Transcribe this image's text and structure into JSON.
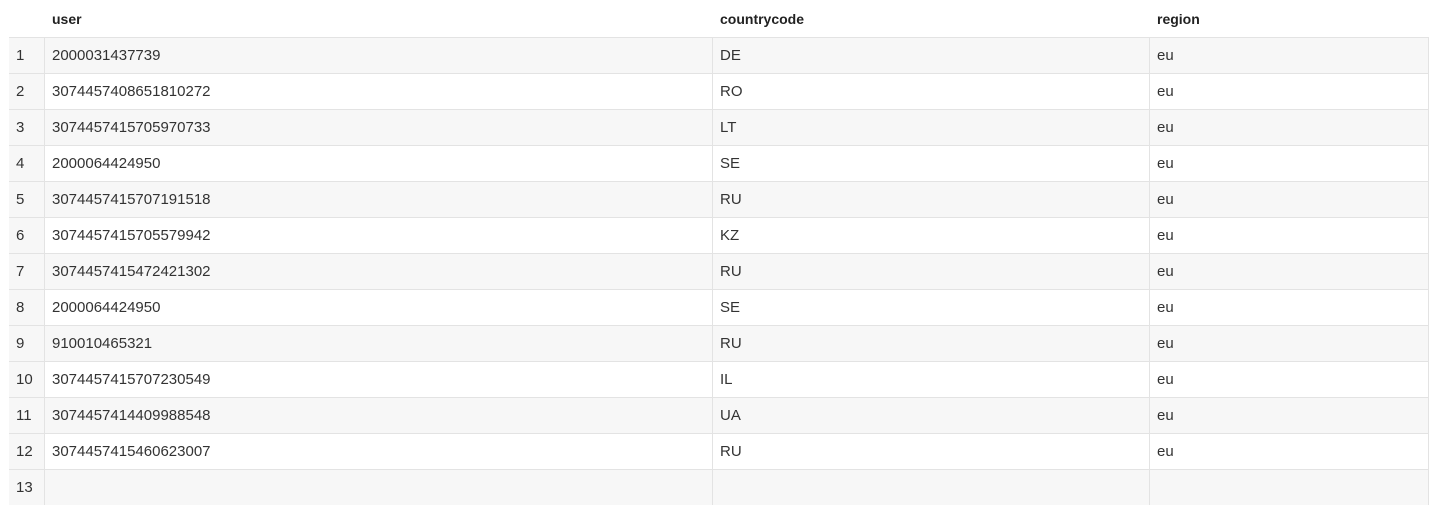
{
  "columns": [
    "user",
    "countrycode",
    "region"
  ],
  "rows": [
    {
      "index": "1",
      "user": "2000031437739",
      "countrycode": "DE",
      "region": "eu"
    },
    {
      "index": "2",
      "user": "3074457408651810272",
      "countrycode": "RO",
      "region": "eu"
    },
    {
      "index": "3",
      "user": "3074457415705970733",
      "countrycode": "LT",
      "region": "eu"
    },
    {
      "index": "4",
      "user": "2000064424950",
      "countrycode": "SE",
      "region": "eu"
    },
    {
      "index": "5",
      "user": "3074457415707191518",
      "countrycode": "RU",
      "region": "eu"
    },
    {
      "index": "6",
      "user": "3074457415705579942",
      "countrycode": "KZ",
      "region": "eu"
    },
    {
      "index": "7",
      "user": "3074457415472421302",
      "countrycode": "RU",
      "region": "eu"
    },
    {
      "index": "8",
      "user": "2000064424950",
      "countrycode": "SE",
      "region": "eu"
    },
    {
      "index": "9",
      "user": "910010465321",
      "countrycode": "RU",
      "region": "eu"
    },
    {
      "index": "10",
      "user": "3074457415707230549",
      "countrycode": "IL",
      "region": "eu"
    },
    {
      "index": "11",
      "user": "3074457414409988548",
      "countrycode": "UA",
      "region": "eu"
    },
    {
      "index": "12",
      "user": "3074457415460623007",
      "countrycode": "RU",
      "region": "eu"
    },
    {
      "index": "13",
      "user": "",
      "countrycode": "",
      "region": ""
    }
  ]
}
